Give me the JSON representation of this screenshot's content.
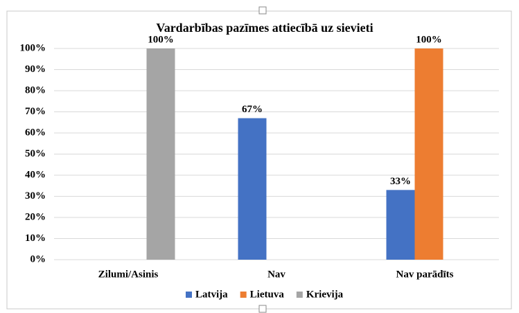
{
  "chart_data": {
    "type": "bar",
    "title": "Vardarbības pazīmes attiecībā uz sievieti",
    "categories": [
      "Zilumi/Asinis",
      "Nav",
      "Nav parādīts"
    ],
    "series": [
      {
        "name": "Latvija",
        "color": "#4472c4",
        "values": [
          0,
          67,
          33
        ],
        "value_labels": [
          null,
          "67%",
          "33%"
        ]
      },
      {
        "name": "Lietuva",
        "color": "#ed7d31",
        "values": [
          0,
          0,
          100
        ],
        "value_labels": [
          null,
          null,
          "100%"
        ]
      },
      {
        "name": "Krievija",
        "color": "#a5a5a5",
        "values": [
          100,
          0,
          0
        ],
        "value_labels": [
          "100%",
          null,
          null
        ]
      }
    ],
    "ylim": [
      0,
      100
    ],
    "yticks": [
      {
        "value": 0,
        "label": "0%"
      },
      {
        "value": 10,
        "label": "10%"
      },
      {
        "value": 20,
        "label": "20%"
      },
      {
        "value": 30,
        "label": "30%"
      },
      {
        "value": 40,
        "label": "40%"
      },
      {
        "value": 50,
        "label": "50%"
      },
      {
        "value": 60,
        "label": "60%"
      },
      {
        "value": 70,
        "label": "70%"
      },
      {
        "value": 80,
        "label": "80%"
      },
      {
        "value": 90,
        "label": "90%"
      },
      {
        "value": 100,
        "label": "100%"
      }
    ],
    "grid": true,
    "legend": "bottom"
  }
}
